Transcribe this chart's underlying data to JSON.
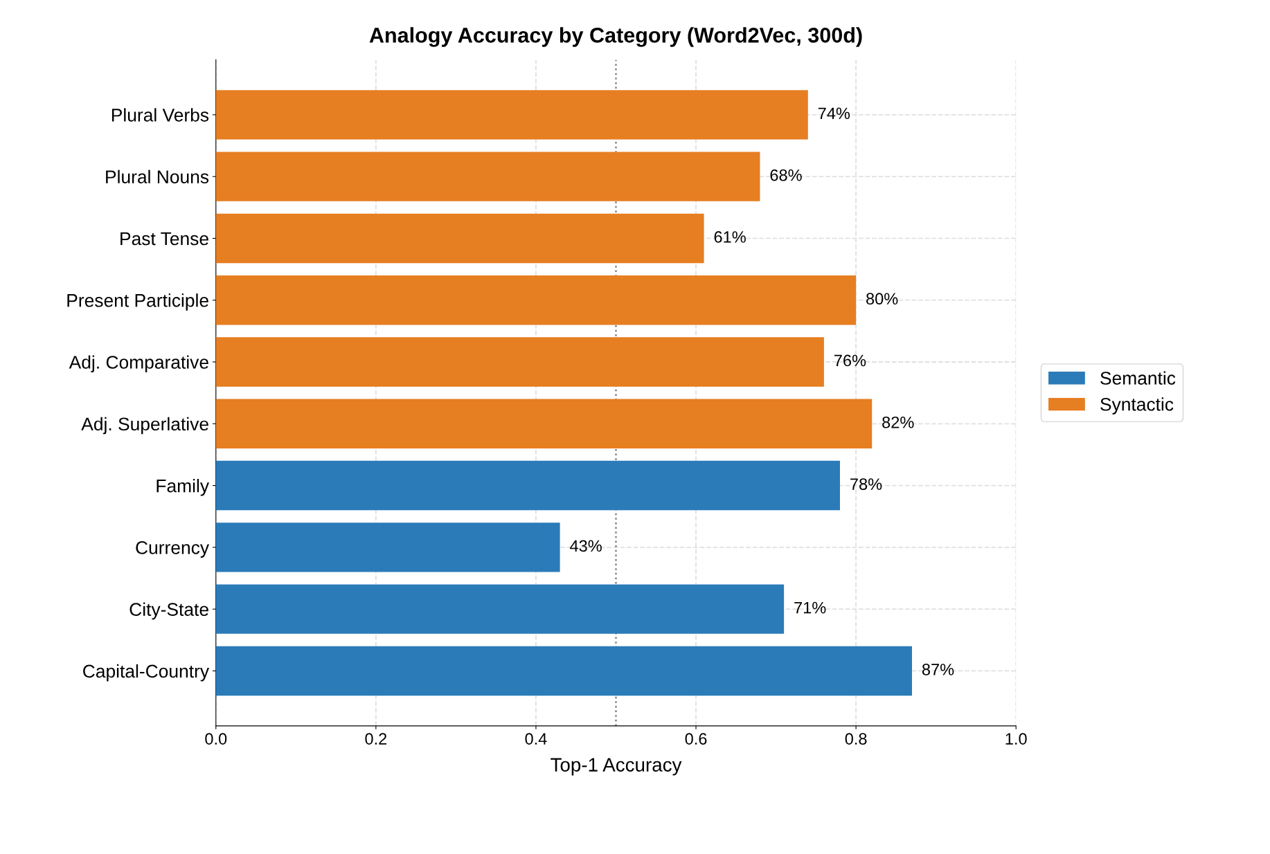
{
  "chart_data": {
    "type": "bar",
    "orientation": "horizontal",
    "title": "Analogy Accuracy by Category (Word2Vec, 300d)",
    "xlabel": "Top-1 Accuracy",
    "categories": [
      "Plural Verbs",
      "Plural Nouns",
      "Past Tense",
      "Present Participle",
      "Adj. Comparative",
      "Adj. Superlative",
      "Family",
      "Currency",
      "City-State",
      "Capital-Country"
    ],
    "series": [
      {
        "name": "Semantic",
        "color": "#2b7bb9",
        "values": [
          null,
          null,
          null,
          null,
          null,
          null,
          0.78,
          0.43,
          0.71,
          0.87
        ],
        "value_labels": [
          null,
          null,
          null,
          null,
          null,
          null,
          "78%",
          "43%",
          "71%",
          "87%"
        ]
      },
      {
        "name": "Syntactic",
        "color": "#e67e22",
        "values": [
          0.74,
          0.68,
          0.61,
          0.8,
          0.76,
          0.82,
          null,
          null,
          null,
          null
        ],
        "value_labels": [
          "74%",
          "68%",
          "61%",
          "80%",
          "76%",
          "82%",
          null,
          null,
          null,
          null
        ]
      }
    ],
    "xlim": [
      0,
      1
    ],
    "xticks": [
      {
        "value": 0,
        "label": "0.0"
      },
      0.2,
      0.4,
      0.6,
      0.8,
      {
        "value": 1,
        "label": "1.0"
      }
    ],
    "ref_lines": [
      {
        "axis": "x",
        "value": 0.5,
        "color": "#808080",
        "line_style": "dotted"
      }
    ],
    "grid": true,
    "legend": "right"
  }
}
